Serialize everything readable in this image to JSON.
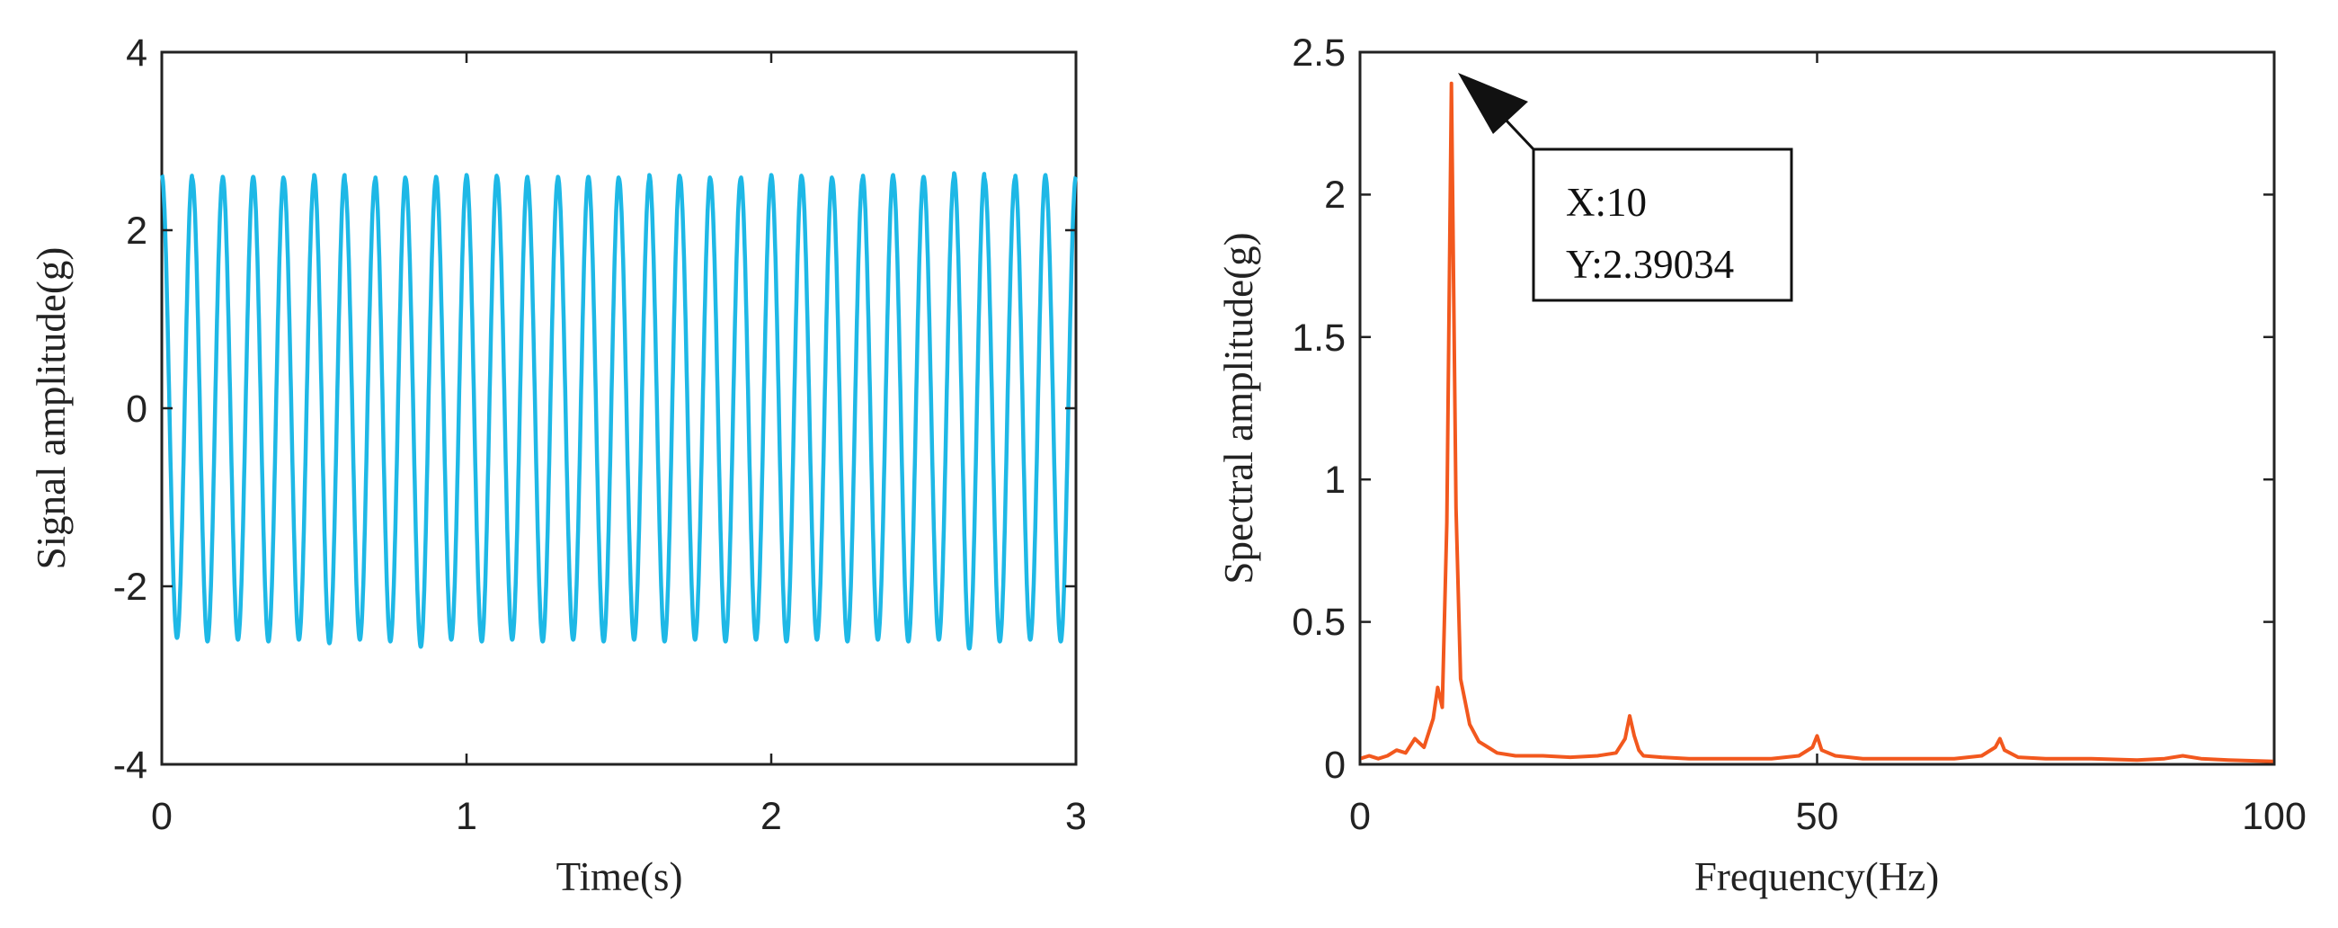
{
  "chart_data": [
    {
      "type": "line",
      "title": "",
      "xlabel": "Time(s)",
      "ylabel": "Signal amplitude(g)",
      "xlim": [
        0,
        3
      ],
      "ylim": [
        -4,
        4
      ],
      "xticks": [
        0,
        1,
        2,
        3
      ],
      "yticks": [
        -4,
        -2,
        0,
        2,
        4
      ],
      "grid": false,
      "series": [
        {
          "name": "time-domain signal",
          "color": "#1EB8E6",
          "frequency_hz": 10,
          "amplitude_g": 2.6,
          "t_start": 0,
          "t_end": 3,
          "peak_values_g": [
            2.62,
            2.58,
            2.6,
            2.6,
            2.58,
            2.62,
            2.56,
            2.6,
            2.58,
            2.6,
            2.62,
            2.6,
            2.58,
            2.6,
            2.6,
            2.58,
            2.62,
            2.6,
            2.58,
            2.6,
            2.62,
            2.6,
            2.58,
            2.62,
            2.6,
            2.6,
            2.64,
            2.58,
            2.62,
            2.6
          ],
          "trough_values_g": [
            -2.58,
            -2.62,
            -2.6,
            -2.62,
            -2.6,
            -2.64,
            -2.6,
            -2.62,
            -2.68,
            -2.6,
            -2.62,
            -2.6,
            -2.62,
            -2.6,
            -2.62,
            -2.6,
            -2.62,
            -2.6,
            -2.62,
            -2.6,
            -2.62,
            -2.6,
            -2.62,
            -2.6,
            -2.62,
            -2.6,
            -2.7,
            -2.62,
            -2.6,
            -2.62
          ]
        }
      ]
    },
    {
      "type": "line",
      "title": "",
      "xlabel": "Frequency(Hz)",
      "ylabel": "Spectral amplitude(g)",
      "xlim": [
        0,
        100
      ],
      "ylim": [
        0,
        2.5
      ],
      "xticks": [
        0,
        50,
        100
      ],
      "yticks": [
        0,
        0.5,
        1,
        1.5,
        2,
        2.5
      ],
      "ytick_labels": [
        "0",
        "0.5",
        "1",
        "1.5",
        "2",
        "2.5"
      ],
      "grid": false,
      "series": [
        {
          "name": "spectrum",
          "color": "#F2581E",
          "x": [
            0,
            1,
            2,
            3,
            4,
            5,
            6,
            7,
            8,
            8.5,
            9,
            9.5,
            10,
            10.5,
            11,
            11.5,
            12,
            13,
            14,
            15,
            17,
            20,
            23,
            26,
            28,
            29,
            29.5,
            30,
            30.5,
            31,
            33,
            36,
            40,
            45,
            48,
            49.5,
            50,
            50.5,
            52,
            55,
            60,
            65,
            68,
            69.5,
            70,
            70.5,
            72,
            75,
            80,
            85,
            88,
            90,
            92,
            95,
            100
          ],
          "y": [
            0.02,
            0.03,
            0.02,
            0.03,
            0.05,
            0.04,
            0.09,
            0.06,
            0.16,
            0.27,
            0.2,
            0.85,
            2.39034,
            0.9,
            0.3,
            0.22,
            0.14,
            0.08,
            0.06,
            0.04,
            0.03,
            0.03,
            0.025,
            0.03,
            0.04,
            0.09,
            0.17,
            0.1,
            0.05,
            0.03,
            0.025,
            0.02,
            0.02,
            0.02,
            0.03,
            0.06,
            0.1,
            0.05,
            0.03,
            0.02,
            0.02,
            0.02,
            0.03,
            0.06,
            0.09,
            0.05,
            0.025,
            0.02,
            0.02,
            0.015,
            0.02,
            0.03,
            0.02,
            0.015,
            0.01
          ]
        }
      ],
      "annotation": {
        "target_x": 10,
        "target_y": 2.39034,
        "line1": "X:10",
        "line2": "Y:2.39034"
      }
    }
  ]
}
